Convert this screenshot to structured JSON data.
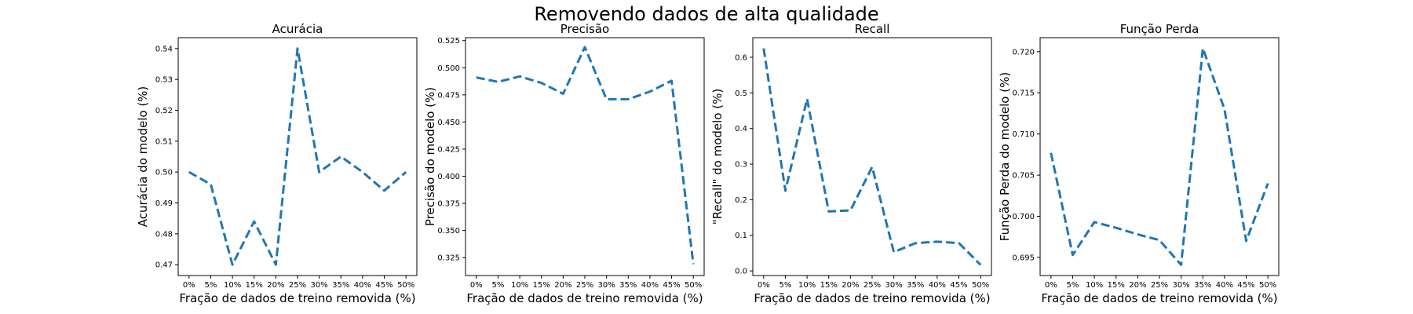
{
  "figure": {
    "suptitle": "Removendo dados de alta qualidade"
  },
  "colors": {
    "series": "#1f77b4"
  },
  "chart_data": [
    {
      "type": "line",
      "title": "Acurácia",
      "xlabel": "Fração de dados de treino removida (%)",
      "ylabel": "Acurácia do modelo (%)",
      "categories": [
        "0%",
        "5%",
        "10%",
        "15%",
        "20%",
        "25%",
        "30%",
        "35%",
        "40%",
        "45%",
        "50%"
      ],
      "values": [
        0.5,
        0.496,
        0.47,
        0.484,
        0.47,
        0.54,
        0.5,
        0.505,
        0.5,
        0.494,
        0.5
      ],
      "ylim": [
        0.4665,
        0.5435
      ],
      "yticks": [
        0.47,
        0.48,
        0.49,
        0.5,
        0.51,
        0.52,
        0.53,
        0.54
      ],
      "ytick_labels": [
        "0.47",
        "0.48",
        "0.49",
        "0.50",
        "0.51",
        "0.52",
        "0.53",
        "0.54"
      ]
    },
    {
      "type": "line",
      "title": "Precisão",
      "xlabel": "Fração de dados de treino removida (%)",
      "ylabel": "Precisão do modelo (%)",
      "categories": [
        "0%",
        "5%",
        "10%",
        "15%",
        "20%",
        "25%",
        "30%",
        "35%",
        "40%",
        "45%",
        "50%"
      ],
      "values": [
        0.491,
        0.487,
        0.492,
        0.486,
        0.476,
        0.519,
        0.471,
        0.471,
        0.478,
        0.488,
        0.319
      ],
      "ylim": [
        0.3085,
        0.5277
      ],
      "yticks": [
        0.325,
        0.35,
        0.375,
        0.4,
        0.425,
        0.45,
        0.475,
        0.5,
        0.525
      ],
      "ytick_labels": [
        "0.325",
        "0.350",
        "0.375",
        "0.400",
        "0.425",
        "0.450",
        "0.475",
        "0.500",
        "0.525"
      ]
    },
    {
      "type": "line",
      "title": "Recall",
      "xlabel": "Fração de dados de treino removida (%)",
      "ylabel": "\"Recall\" do modelo (%)",
      "categories": [
        "0%",
        "5%",
        "10%",
        "15%",
        "20%",
        "25%",
        "30%",
        "35%",
        "40%",
        "45%",
        "50%"
      ],
      "values": [
        0.625,
        0.225,
        0.483,
        0.167,
        0.17,
        0.292,
        0.053,
        0.078,
        0.082,
        0.078,
        0.017
      ],
      "ylim": [
        -0.013,
        0.655
      ],
      "yticks": [
        0.0,
        0.1,
        0.2,
        0.3,
        0.4,
        0.5,
        0.6
      ],
      "ytick_labels": [
        "0.0",
        "0.1",
        "0.2",
        "0.3",
        "0.4",
        "0.5",
        "0.6"
      ]
    },
    {
      "type": "line",
      "title": "Função Perda",
      "xlabel": "Fração de dados de treino removida (%)",
      "ylabel": "Função Perda do modelo (%)",
      "categories": [
        "0%",
        "5%",
        "10%",
        "15%",
        "20%",
        "25%",
        "30%",
        "35%",
        "40%",
        "45%",
        "50%"
      ],
      "values": [
        0.7077,
        0.6953,
        0.6993,
        0.6986,
        0.6978,
        0.6971,
        0.6941,
        0.7204,
        0.713,
        0.697,
        0.704
      ],
      "ylim": [
        0.6928,
        0.7217
      ],
      "yticks": [
        0.695,
        0.7,
        0.705,
        0.71,
        0.715,
        0.72
      ],
      "ytick_labels": [
        "0.695",
        "0.700",
        "0.705",
        "0.710",
        "0.715",
        "0.720"
      ]
    }
  ]
}
